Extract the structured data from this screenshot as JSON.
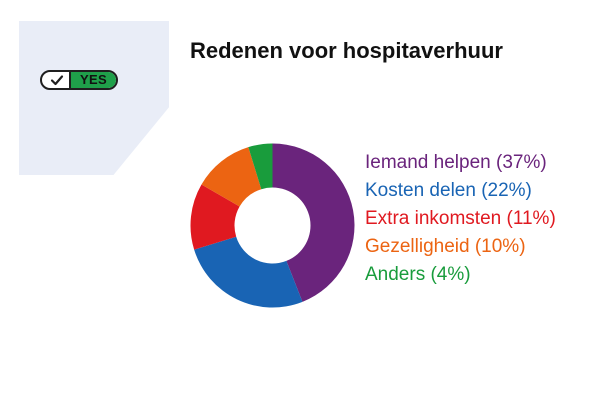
{
  "badge": {
    "label": "YES",
    "check_icon": "check-icon",
    "fill_color": "#1fa04a"
  },
  "chart_data": {
    "type": "pie",
    "variant": "donut",
    "title": "Redenen voor hospitaverhuur",
    "start_angle_deg": 0,
    "direction": "clockwise",
    "legend_position": "right",
    "slices": [
      {
        "label": "Iemand helpen (37%)",
        "value": 37,
        "color": "#6a247c"
      },
      {
        "label": "Kosten delen (22%)",
        "value": 22,
        "color": "#1964b4"
      },
      {
        "label": "Extra inkomsten (11%)",
        "value": 11,
        "color": "#e01920"
      },
      {
        "label": "Gezelligheid (10%)",
        "value": 10,
        "color": "#ec6412"
      },
      {
        "label": "Anders (4%)",
        "value": 4,
        "color": "#199c3c"
      }
    ]
  }
}
